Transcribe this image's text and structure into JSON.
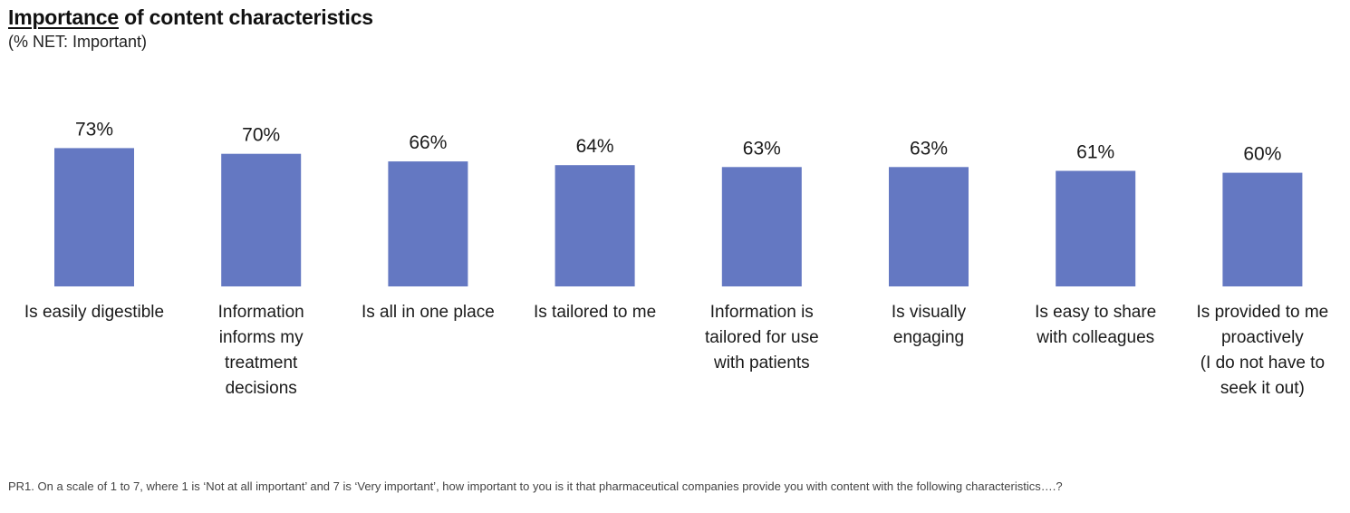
{
  "title": {
    "underlined": "Importance",
    "rest": " of content characteristics"
  },
  "subtitle": "(% NET: Important)",
  "footnote": "PR1. On a scale of 1 to 7, where 1 is ‘Not at all important’ and 7 is ‘Very important’, how important to you is it that pharmaceutical companies provide you with content with the following characteristics….?",
  "colors": {
    "bar": "#6478c2",
    "text": "#1a1a1a"
  },
  "chart_data": {
    "type": "bar",
    "categories": [
      "Is easily digestible",
      "Information\ninforms my\ntreatment\ndecisions",
      "Is all in one place",
      "Is tailored to me",
      "Information is\ntailored for use\nwith patients",
      "Is visually\nengaging",
      "Is easy to share\nwith colleagues",
      "Is provided to me\nproactively\n(I do not have to\nseek it out)"
    ],
    "values": [
      73,
      70,
      66,
      64,
      63,
      63,
      61,
      60
    ],
    "data_labels": [
      "73%",
      "70%",
      "66%",
      "64%",
      "63%",
      "63%",
      "61%",
      "60%"
    ],
    "ylim": [
      0,
      100
    ],
    "grid": false,
    "legend": "none"
  }
}
